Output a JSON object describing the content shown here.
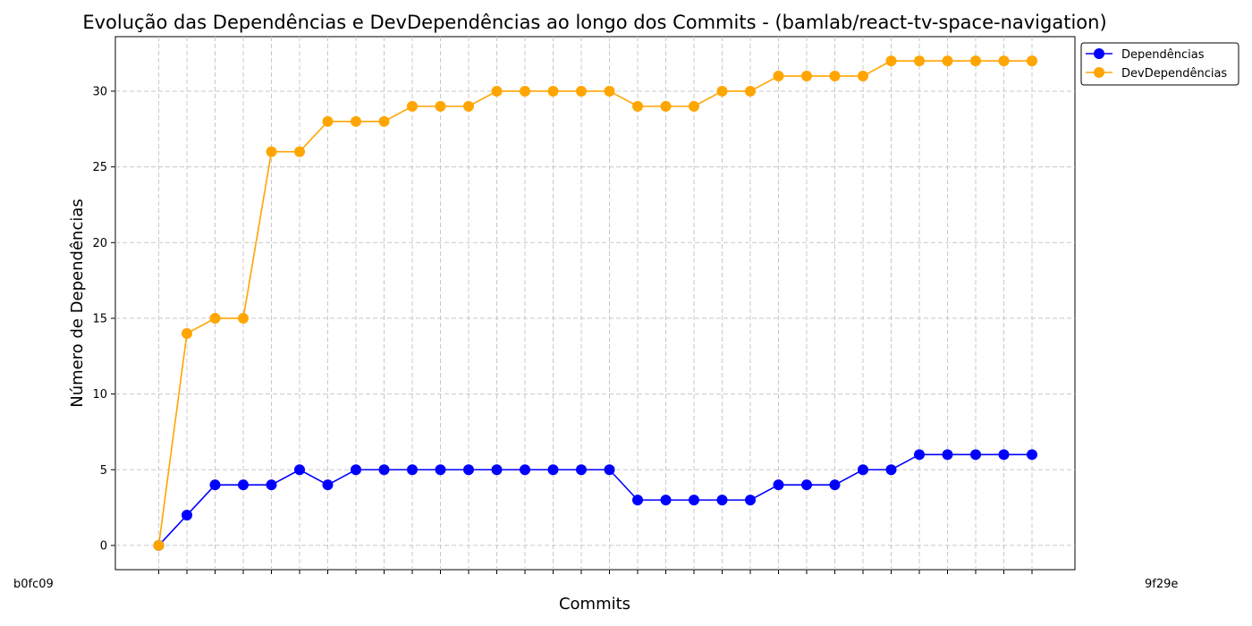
{
  "chart_data": {
    "type": "line",
    "title": "Evolução das Dependências e DevDependências ao longo dos Commits - (bamlab/react-tv-space-navigation)",
    "xlabel": "Commits",
    "ylabel": "Número de Dependências",
    "x_first_label": "b0fc09",
    "x_last_label": "9f29e",
    "ylim": [
      -1.6,
      33.6
    ],
    "yticks": [
      0,
      5,
      10,
      15,
      20,
      25,
      30
    ],
    "grid": true,
    "legend_position": "top-right",
    "series": [
      {
        "name": "Dependências",
        "color": "#0000ff",
        "values": [
          0,
          2,
          4,
          4,
          4,
          5,
          4,
          5,
          5,
          5,
          5,
          5,
          5,
          5,
          5,
          5,
          5,
          3,
          3,
          3,
          3,
          3,
          4,
          4,
          4,
          5,
          5,
          6,
          6,
          6,
          6,
          6
        ]
      },
      {
        "name": "DevDependências",
        "color": "#ffa500",
        "values": [
          0,
          14,
          15,
          15,
          26,
          26,
          28,
          28,
          28,
          29,
          29,
          29,
          30,
          30,
          30,
          30,
          30,
          29,
          29,
          29,
          30,
          30,
          31,
          31,
          31,
          31,
          32,
          32,
          32,
          32,
          32,
          32
        ]
      }
    ]
  }
}
